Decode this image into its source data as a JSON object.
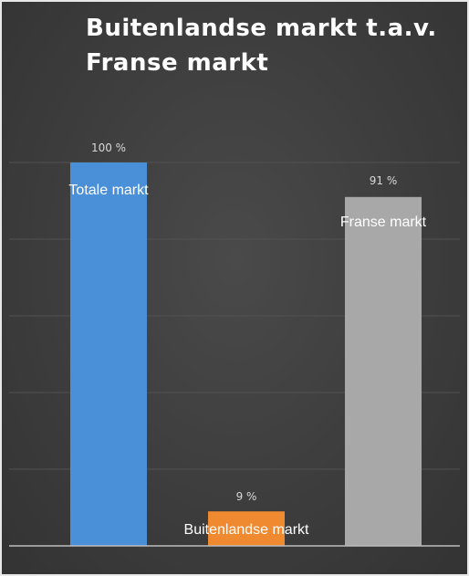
{
  "chart_data": {
    "type": "bar",
    "title_lines": [
      "Buitenlandse markt t.a.v.",
      "Franse markt"
    ],
    "xlabel": "",
    "ylabel": "",
    "ylim": [
      0,
      100
    ],
    "grid": true,
    "legend": "none",
    "value_suffix": " %",
    "categories": [
      "Totale markt",
      "Buitenlandse markt",
      "Franse markt"
    ],
    "values": [
      100,
      9,
      91
    ],
    "colors": [
      "#4a90d9",
      "#f08a30",
      "#a8a8a8"
    ]
  }
}
